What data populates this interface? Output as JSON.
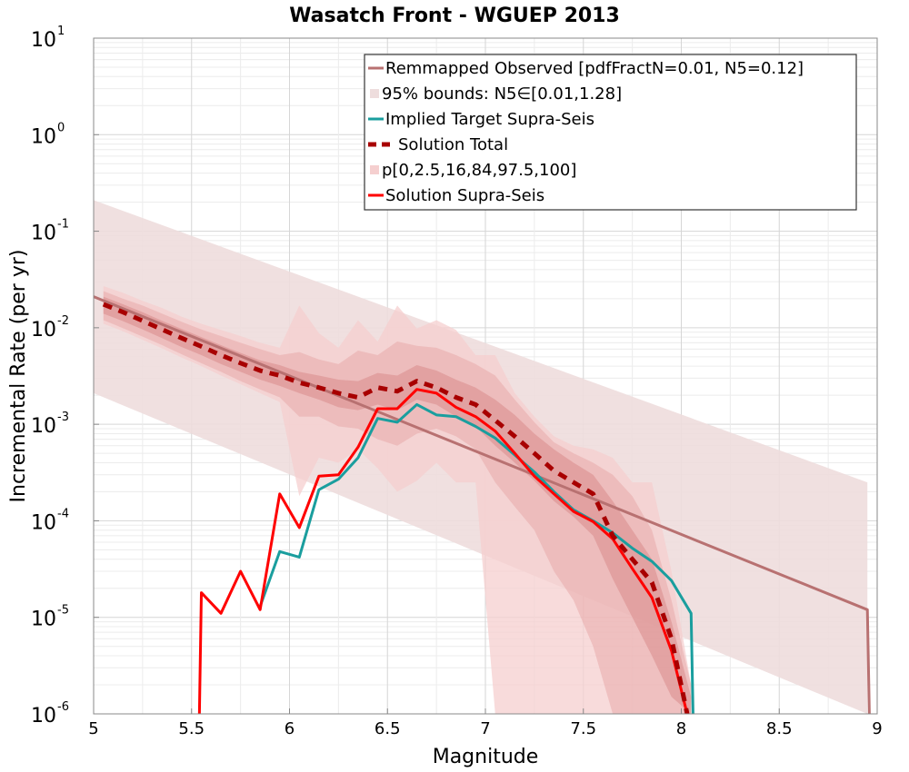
{
  "chart_data": {
    "type": "line",
    "title": "Wasatch Front - WGUEP 2013",
    "xlabel": "Magnitude",
    "ylabel": "Incremental Rate (per yr)",
    "xlim": [
      5,
      9
    ],
    "ylim_log10": [
      -6,
      1
    ],
    "y_scale": "log",
    "grid": true,
    "legend_position": "top-right",
    "x_ticks": [
      "5",
      "5.5",
      "6",
      "6.5",
      "7",
      "7.5",
      "8",
      "8.5",
      "9"
    ],
    "y_ticks": [
      {
        "base": "10",
        "exp": "1",
        "value": 1
      },
      {
        "base": "10",
        "exp": "0",
        "value": 0
      },
      {
        "base": "10",
        "exp": "-1",
        "value": -1
      },
      {
        "base": "10",
        "exp": "-2",
        "value": -2
      },
      {
        "base": "10",
        "exp": "-3",
        "value": -3
      },
      {
        "base": "10",
        "exp": "-4",
        "value": -4
      },
      {
        "base": "10",
        "exp": "-5",
        "value": -5
      },
      {
        "base": "10",
        "exp": "-6",
        "value": -6
      }
    ],
    "colors": {
      "observed": "#b87171",
      "observed_band": "#eedddd",
      "target": "#1a9e9e",
      "solution_total": "#a80000",
      "solution_supra": "#ff0000",
      "p_band_light": "#f5cfcf",
      "p_band_mid": "#e7a9a9",
      "p_band_dark": "#db8f8f"
    },
    "legend": [
      {
        "label": "Remmapped Observed [pdfFractN=0.01, N5=0.12]",
        "style": "line",
        "color": "#b87171"
      },
      {
        "label": "95% bounds: N5∈[0.01,1.28]",
        "style": "band",
        "color": "#eedddd"
      },
      {
        "label": "Implied Target Supra-Seis",
        "style": "line",
        "color": "#1a9e9e"
      },
      {
        "label": "Solution Total",
        "style": "dash",
        "color": "#a80000"
      },
      {
        "label": "p[0,2.5,16,84,97.5,100]",
        "style": "band",
        "color": "#f5cfcf"
      },
      {
        "label": "Solution Supra-Seis",
        "style": "line",
        "color": "#ff0000"
      }
    ],
    "series": [
      {
        "name": "Remmapped Observed [pdfFractN=0.01, N5=0.12]",
        "x": [
          5.0,
          8.95,
          8.96
        ],
        "y": [
          0.021,
          1.2e-05,
          1e-06
        ]
      },
      {
        "name": "Implied Target Supra-Seis",
        "x": [
          5.85,
          5.95,
          6.05,
          6.15,
          6.25,
          6.35,
          6.45,
          6.55,
          6.65,
          6.75,
          6.85,
          6.95,
          7.05,
          7.15,
          7.25,
          7.35,
          7.45,
          7.55,
          7.65,
          7.75,
          7.85,
          7.95,
          8.05,
          8.06
        ],
        "y": [
          1.3e-05,
          4.8e-05,
          4.2e-05,
          0.00021,
          0.00027,
          0.00045,
          0.00115,
          0.00105,
          0.0016,
          0.00125,
          0.0012,
          0.00095,
          0.00072,
          0.00048,
          0.00032,
          0.0002,
          0.00013,
          0.0001,
          7.5e-05,
          5.2e-05,
          3.8e-05,
          2.4e-05,
          1.1e-05,
          1e-06
        ]
      },
      {
        "name": "Solution Total",
        "x": [
          5.05,
          5.15,
          5.25,
          5.35,
          5.45,
          5.55,
          5.65,
          5.75,
          5.85,
          5.95,
          6.05,
          6.15,
          6.25,
          6.35,
          6.45,
          6.55,
          6.65,
          6.75,
          6.85,
          6.95,
          7.05,
          7.15,
          7.25,
          7.35,
          7.45,
          7.55,
          7.65,
          7.75,
          7.85,
          7.95,
          8.03
        ],
        "y": [
          0.0175,
          0.0145,
          0.0118,
          0.0096,
          0.0078,
          0.0064,
          0.0052,
          0.0043,
          0.0036,
          0.0032,
          0.0027,
          0.0024,
          0.0021,
          0.0019,
          0.0024,
          0.0022,
          0.0028,
          0.0024,
          0.0019,
          0.0016,
          0.0011,
          0.00075,
          0.0005,
          0.00033,
          0.00025,
          0.00019,
          7e-05,
          4e-05,
          2.3e-05,
          6e-06,
          1e-06
        ]
      },
      {
        "name": "Solution Supra-Seis",
        "x": [
          5.54,
          5.55,
          5.65,
          5.75,
          5.85,
          5.95,
          6.05,
          6.15,
          6.25,
          6.35,
          6.45,
          6.55,
          6.65,
          6.75,
          6.85,
          6.95,
          7.05,
          7.15,
          7.25,
          7.35,
          7.45,
          7.55,
          7.65,
          7.75,
          7.85,
          7.95,
          8.03
        ],
        "y": [
          1e-06,
          1.8e-05,
          1.1e-05,
          3e-05,
          1.2e-05,
          0.00019,
          8.5e-05,
          0.00029,
          0.0003,
          0.00058,
          0.00145,
          0.00145,
          0.0023,
          0.0021,
          0.0015,
          0.0012,
          0.00085,
          0.0005,
          0.00029,
          0.00019,
          0.000125,
          9.8e-05,
          6.5e-05,
          3.2e-05,
          1.6e-05,
          4.5e-06,
          1e-06
        ]
      }
    ],
    "bands": [
      {
        "name": "95% bounds: N5∈[0.01,1.28]",
        "x": [
          5.0,
          8.95
        ],
        "lower": [
          0.0021,
          1e-06
        ],
        "upper": [
          0.21,
          0.00025
        ]
      },
      {
        "name": "p 0-100",
        "x": [
          5.05,
          5.15,
          5.25,
          5.35,
          5.45,
          5.55,
          5.65,
          5.75,
          5.85,
          5.95,
          6.05,
          6.15,
          6.25,
          6.35,
          6.45,
          6.55,
          6.65,
          6.75,
          6.85,
          6.95,
          7.05,
          7.15,
          7.25,
          7.35,
          7.45,
          7.55,
          7.65,
          7.75,
          7.85,
          7.95,
          8.05
        ],
        "lower": [
          0.011,
          0.0092,
          0.0075,
          0.0061,
          0.0049,
          0.004,
          0.0032,
          0.0026,
          0.0021,
          0.0017,
          0.00018,
          0.00045,
          0.0004,
          0.00055,
          0.00035,
          0.0002,
          0.00026,
          0.0004,
          0.00025,
          0.00025,
          1e-06,
          1e-06,
          1e-06,
          1e-06,
          1e-06,
          1e-06,
          1e-06,
          1e-06,
          1e-06,
          1e-06,
          1e-06
        ],
        "upper": [
          0.027,
          0.023,
          0.019,
          0.016,
          0.013,
          0.011,
          0.0095,
          0.0082,
          0.007,
          0.0062,
          0.017,
          0.0088,
          0.0062,
          0.012,
          0.0072,
          0.017,
          0.0098,
          0.012,
          0.0095,
          0.0052,
          0.0052,
          0.0021,
          0.0012,
          0.00075,
          0.0006,
          0.00055,
          0.00045,
          0.00025,
          0.00025,
          3e-05,
          2e-06
        ]
      },
      {
        "name": "p 2.5-97.5",
        "x": [
          5.05,
          5.15,
          5.25,
          5.35,
          5.45,
          5.55,
          5.65,
          5.75,
          5.85,
          5.95,
          6.05,
          6.15,
          6.25,
          6.35,
          6.45,
          6.55,
          6.65,
          6.75,
          6.85,
          6.95,
          7.05,
          7.15,
          7.25,
          7.35,
          7.45,
          7.55,
          7.65,
          7.75,
          7.85,
          7.95,
          8.05
        ],
        "lower": [
          0.012,
          0.0099,
          0.0081,
          0.0066,
          0.0053,
          0.0043,
          0.0035,
          0.0028,
          0.0023,
          0.0019,
          0.0012,
          0.0012,
          0.00095,
          0.0009,
          0.0007,
          0.0006,
          0.0008,
          0.0009,
          0.00075,
          0.00055,
          0.00025,
          0.00014,
          8e-05,
          3e-05,
          1.5e-05,
          5e-06,
          1e-06,
          1e-06,
          1e-06,
          1e-06,
          1e-06
        ],
        "upper": [
          0.024,
          0.02,
          0.017,
          0.014,
          0.0115,
          0.0096,
          0.0082,
          0.007,
          0.006,
          0.0052,
          0.0056,
          0.0047,
          0.0042,
          0.0058,
          0.0052,
          0.0072,
          0.0065,
          0.0062,
          0.0052,
          0.0042,
          0.0032,
          0.0018,
          0.00105,
          0.00065,
          0.0005,
          0.0004,
          0.0003,
          0.00018,
          8e-05,
          1.5e-05,
          2e-06
        ]
      },
      {
        "name": "p 16-84",
        "x": [
          5.05,
          5.15,
          5.25,
          5.35,
          5.45,
          5.55,
          5.65,
          5.75,
          5.85,
          5.95,
          6.05,
          6.15,
          6.25,
          6.35,
          6.45,
          6.55,
          6.65,
          6.75,
          6.85,
          6.95,
          7.05,
          7.15,
          7.25,
          7.35,
          7.45,
          7.55,
          7.65,
          7.75,
          7.85,
          7.95,
          8.05
        ],
        "lower": [
          0.014,
          0.0117,
          0.0096,
          0.0078,
          0.0063,
          0.0052,
          0.0042,
          0.0035,
          0.0029,
          0.0025,
          0.0021,
          0.0018,
          0.0015,
          0.0014,
          0.0016,
          0.0014,
          0.0018,
          0.0016,
          0.0012,
          0.00095,
          0.0006,
          0.0004,
          0.00026,
          0.00016,
          0.00011,
          7e-05,
          2.5e-05,
          1e-05,
          4e-06,
          1.5e-06,
          1e-06
        ],
        "upper": [
          0.021,
          0.0175,
          0.0145,
          0.0118,
          0.0097,
          0.008,
          0.0066,
          0.0055,
          0.0046,
          0.0041,
          0.0035,
          0.0032,
          0.0029,
          0.0028,
          0.0034,
          0.0032,
          0.0041,
          0.0036,
          0.0029,
          0.0024,
          0.0018,
          0.00125,
          0.0008,
          0.00055,
          0.0004,
          0.0003,
          0.00016,
          8e-05,
          4e-05,
          9e-06,
          1.5e-06
        ]
      }
    ]
  }
}
